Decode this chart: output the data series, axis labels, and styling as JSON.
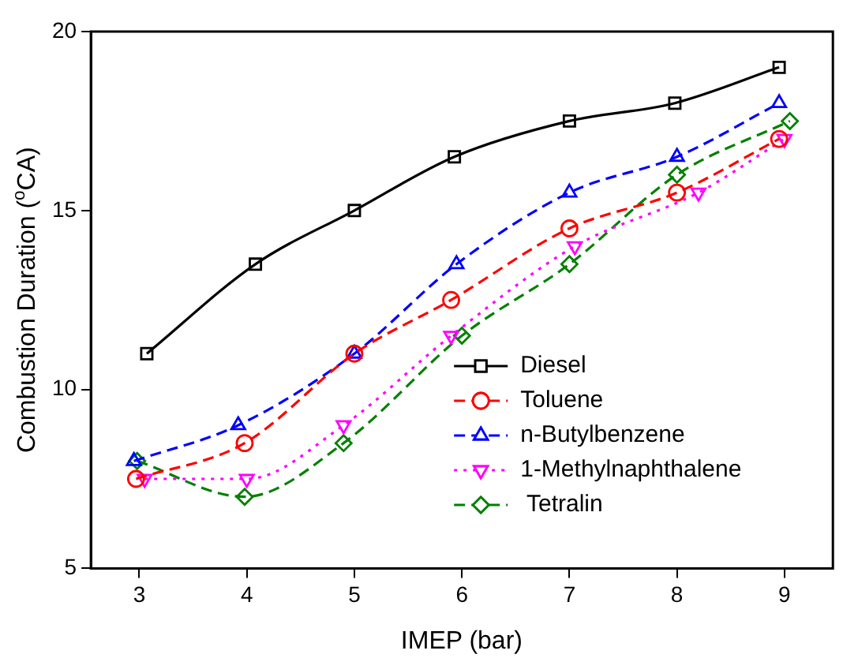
{
  "chart_data": {
    "type": "line",
    "xlabel": "IMEP (bar)",
    "ylabel": "Combustion Duration ($^{o}$CA)",
    "xlim": [
      2.55,
      9.45
    ],
    "xticks": [
      3,
      4,
      5,
      6,
      7,
      8,
      9
    ],
    "ylim": [
      5,
      20
    ],
    "yticks": [
      5,
      10,
      15,
      20
    ],
    "legend": "center right",
    "grid": false,
    "series": [
      {
        "name": "Diesel",
        "color": "#000000",
        "marker": "square",
        "line_style": "solid",
        "x": [
          3.07,
          4.08,
          5.0,
          5.93,
          7.0,
          7.98,
          8.95
        ],
        "values": [
          11,
          13.5,
          15,
          16.5,
          17.5,
          18,
          19
        ]
      },
      {
        "name": "Toluene",
        "color": "#ff0000",
        "marker": "circle",
        "line_style": "dashed",
        "x": [
          2.97,
          3.98,
          5.0,
          5.9,
          7.0,
          8.0,
          8.95
        ],
        "values": [
          7.5,
          8.5,
          11,
          12.5,
          14.5,
          15.5,
          17
        ]
      },
      {
        "name": "n-Butylbenzene",
        "color": "#0000ff",
        "marker": "triangle",
        "line_style": "dashed",
        "x": [
          2.95,
          3.92,
          5.0,
          5.95,
          7.0,
          8.0,
          8.95
        ],
        "values": [
          8,
          9,
          11,
          13.5,
          15.5,
          16.5,
          18
        ]
      },
      {
        "name": "1-Methylnaphthalene",
        "color": "#ff00ff",
        "marker": "triangle-down",
        "line_style": "dotted",
        "x": [
          3.05,
          4.0,
          4.9,
          5.9,
          7.05,
          8.2,
          9.0
        ],
        "values": [
          7.5,
          7.5,
          9,
          11.5,
          14,
          15.5,
          17
        ]
      },
      {
        "name": " Tetralin",
        "color": "#008000",
        "marker": "diamond",
        "line_style": "dashed",
        "x": [
          2.98,
          3.98,
          4.9,
          6.0,
          7.0,
          8.0,
          9.05
        ],
        "values": [
          8,
          7,
          8.5,
          11.5,
          13.5,
          16,
          17.5
        ]
      }
    ]
  }
}
